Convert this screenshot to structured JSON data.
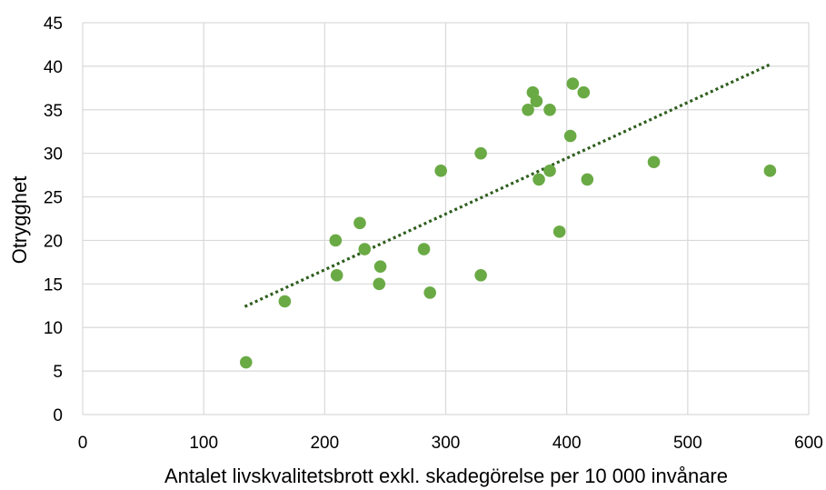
{
  "chart_data": {
    "type": "scatter",
    "title": "",
    "xlabel": "Antalet livskvalitetsbrott exkl. skadegörelse per 10 000 invånare",
    "ylabel": "Otrygghet",
    "xlim": [
      0,
      600
    ],
    "ylim": [
      0,
      45
    ],
    "xticks": [
      0,
      100,
      200,
      300,
      400,
      500,
      600
    ],
    "yticks": [
      0,
      5,
      10,
      15,
      20,
      25,
      30,
      35,
      40,
      45
    ],
    "grid": true,
    "legend": "none",
    "series": [
      {
        "color": "#6aaa45",
        "points": [
          {
            "x": 135,
            "y": 6
          },
          {
            "x": 167,
            "y": 13
          },
          {
            "x": 209,
            "y": 20
          },
          {
            "x": 210,
            "y": 16
          },
          {
            "x": 229,
            "y": 22
          },
          {
            "x": 233,
            "y": 19
          },
          {
            "x": 245,
            "y": 15
          },
          {
            "x": 246,
            "y": 17
          },
          {
            "x": 282,
            "y": 19
          },
          {
            "x": 287,
            "y": 14
          },
          {
            "x": 296,
            "y": 28
          },
          {
            "x": 329,
            "y": 30
          },
          {
            "x": 329,
            "y": 16
          },
          {
            "x": 368,
            "y": 35
          },
          {
            "x": 372,
            "y": 37
          },
          {
            "x": 375,
            "y": 36
          },
          {
            "x": 377,
            "y": 27
          },
          {
            "x": 386,
            "y": 35
          },
          {
            "x": 386,
            "y": 28
          },
          {
            "x": 394,
            "y": 21
          },
          {
            "x": 403,
            "y": 32
          },
          {
            "x": 405,
            "y": 38
          },
          {
            "x": 414,
            "y": 37
          },
          {
            "x": 417,
            "y": 27
          },
          {
            "x": 472,
            "y": 29
          },
          {
            "x": 568,
            "y": 28
          }
        ]
      }
    ],
    "trendline": {
      "style": "dotted",
      "color": "#2e5e1e",
      "x": [
        134,
        568
      ],
      "y": [
        12.4,
        40.2
      ]
    }
  }
}
